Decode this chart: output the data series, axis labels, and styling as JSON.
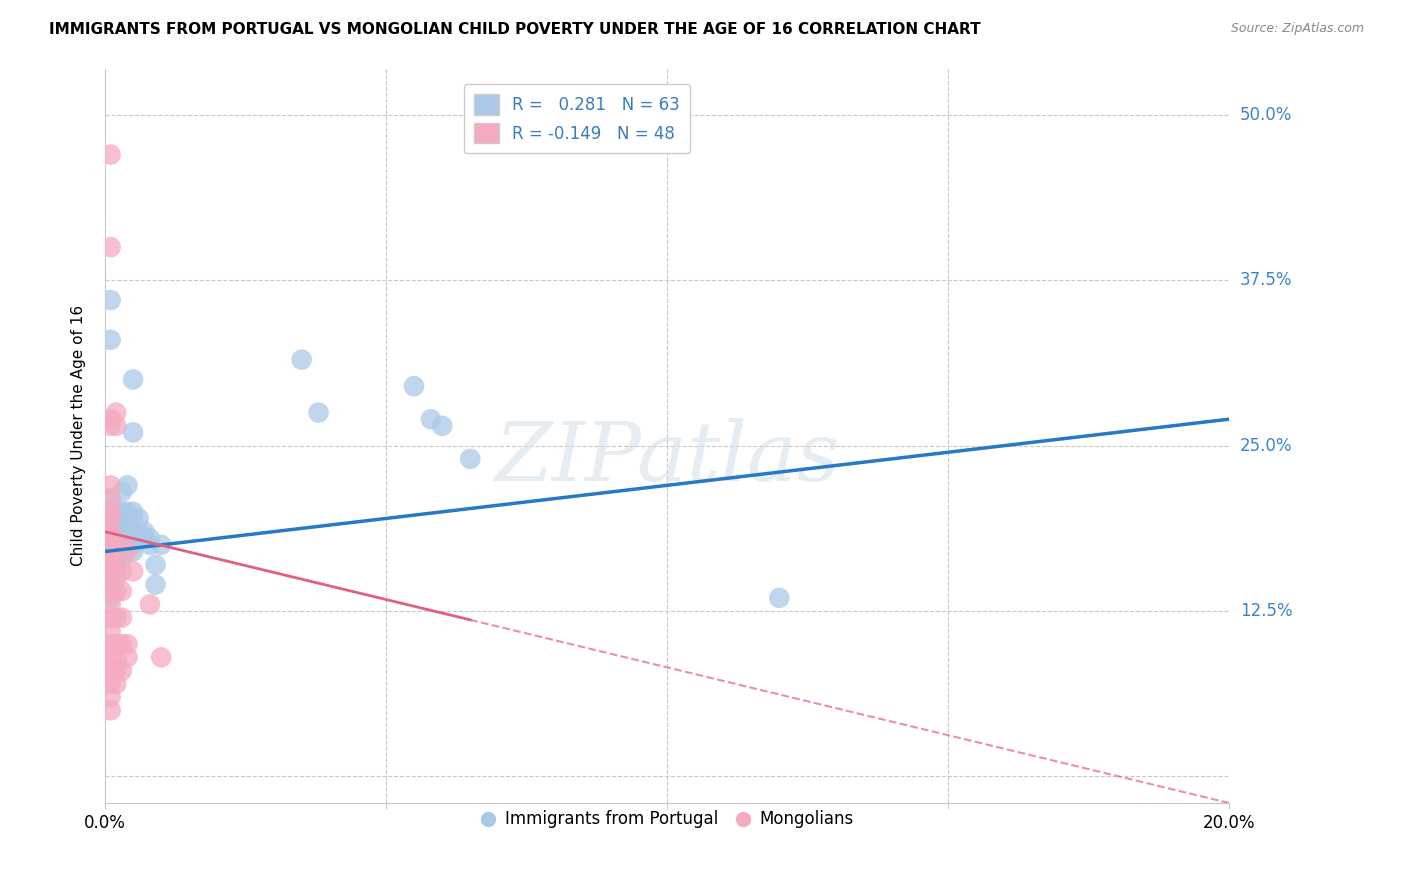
{
  "title": "IMMIGRANTS FROM PORTUGAL VS MONGOLIAN CHILD POVERTY UNDER THE AGE OF 16 CORRELATION CHART",
  "source": "Source: ZipAtlas.com",
  "ylabel": "Child Poverty Under the Age of 16",
  "y_ticks": [
    0.0,
    0.125,
    0.25,
    0.375,
    0.5
  ],
  "y_tick_labels": [
    "",
    "12.5%",
    "25.0%",
    "37.5%",
    "50.0%"
  ],
  "x_range": [
    0.0,
    0.2
  ],
  "y_range": [
    -0.02,
    0.535
  ],
  "blue_R": 0.281,
  "blue_N": 63,
  "pink_R": -0.149,
  "pink_N": 48,
  "legend_label_blue": "Immigrants from Portugal",
  "legend_label_pink": "Mongolians",
  "blue_color": "#aac9e8",
  "pink_color": "#f5aabf",
  "blue_line_color": "#2878c8",
  "pink_line_color": "#e06080",
  "blue_scatter": [
    [
      0.001,
      0.36
    ],
    [
      0.001,
      0.33
    ],
    [
      0.001,
      0.21
    ],
    [
      0.001,
      0.2
    ],
    [
      0.001,
      0.195
    ],
    [
      0.001,
      0.185
    ],
    [
      0.001,
      0.18
    ],
    [
      0.001,
      0.175
    ],
    [
      0.001,
      0.17
    ],
    [
      0.001,
      0.165
    ],
    [
      0.001,
      0.16
    ],
    [
      0.001,
      0.155
    ],
    [
      0.001,
      0.15
    ],
    [
      0.001,
      0.145
    ],
    [
      0.001,
      0.14
    ],
    [
      0.001,
      0.135
    ],
    [
      0.002,
      0.2
    ],
    [
      0.002,
      0.195
    ],
    [
      0.002,
      0.19
    ],
    [
      0.002,
      0.185
    ],
    [
      0.002,
      0.18
    ],
    [
      0.002,
      0.175
    ],
    [
      0.002,
      0.17
    ],
    [
      0.002,
      0.165
    ],
    [
      0.002,
      0.16
    ],
    [
      0.002,
      0.155
    ],
    [
      0.002,
      0.15
    ],
    [
      0.003,
      0.215
    ],
    [
      0.003,
      0.2
    ],
    [
      0.003,
      0.195
    ],
    [
      0.003,
      0.19
    ],
    [
      0.003,
      0.185
    ],
    [
      0.003,
      0.18
    ],
    [
      0.003,
      0.175
    ],
    [
      0.003,
      0.165
    ],
    [
      0.004,
      0.22
    ],
    [
      0.004,
      0.2
    ],
    [
      0.004,
      0.195
    ],
    [
      0.004,
      0.185
    ],
    [
      0.004,
      0.175
    ],
    [
      0.005,
      0.3
    ],
    [
      0.005,
      0.26
    ],
    [
      0.005,
      0.2
    ],
    [
      0.005,
      0.195
    ],
    [
      0.005,
      0.18
    ],
    [
      0.005,
      0.175
    ],
    [
      0.005,
      0.17
    ],
    [
      0.006,
      0.195
    ],
    [
      0.006,
      0.185
    ],
    [
      0.007,
      0.185
    ],
    [
      0.007,
      0.18
    ],
    [
      0.008,
      0.18
    ],
    [
      0.008,
      0.175
    ],
    [
      0.009,
      0.16
    ],
    [
      0.009,
      0.145
    ],
    [
      0.01,
      0.175
    ],
    [
      0.035,
      0.315
    ],
    [
      0.038,
      0.275
    ],
    [
      0.055,
      0.295
    ],
    [
      0.058,
      0.27
    ],
    [
      0.06,
      0.265
    ],
    [
      0.065,
      0.24
    ],
    [
      0.12,
      0.135
    ]
  ],
  "pink_scatter": [
    [
      0.001,
      0.47
    ],
    [
      0.001,
      0.4
    ],
    [
      0.001,
      0.27
    ],
    [
      0.001,
      0.265
    ],
    [
      0.001,
      0.22
    ],
    [
      0.001,
      0.21
    ],
    [
      0.001,
      0.2
    ],
    [
      0.001,
      0.195
    ],
    [
      0.001,
      0.185
    ],
    [
      0.001,
      0.18
    ],
    [
      0.001,
      0.175
    ],
    [
      0.001,
      0.17
    ],
    [
      0.001,
      0.165
    ],
    [
      0.001,
      0.16
    ],
    [
      0.001,
      0.155
    ],
    [
      0.001,
      0.15
    ],
    [
      0.001,
      0.14
    ],
    [
      0.001,
      0.13
    ],
    [
      0.001,
      0.12
    ],
    [
      0.001,
      0.11
    ],
    [
      0.001,
      0.1
    ],
    [
      0.001,
      0.09
    ],
    [
      0.001,
      0.08
    ],
    [
      0.001,
      0.07
    ],
    [
      0.001,
      0.06
    ],
    [
      0.001,
      0.05
    ],
    [
      0.002,
      0.275
    ],
    [
      0.002,
      0.265
    ],
    [
      0.002,
      0.17
    ],
    [
      0.002,
      0.155
    ],
    [
      0.002,
      0.14
    ],
    [
      0.002,
      0.12
    ],
    [
      0.002,
      0.1
    ],
    [
      0.002,
      0.09
    ],
    [
      0.002,
      0.08
    ],
    [
      0.002,
      0.07
    ],
    [
      0.003,
      0.175
    ],
    [
      0.003,
      0.155
    ],
    [
      0.003,
      0.14
    ],
    [
      0.003,
      0.12
    ],
    [
      0.003,
      0.1
    ],
    [
      0.003,
      0.08
    ],
    [
      0.004,
      0.17
    ],
    [
      0.004,
      0.1
    ],
    [
      0.004,
      0.09
    ],
    [
      0.005,
      0.155
    ],
    [
      0.008,
      0.13
    ],
    [
      0.01,
      0.09
    ]
  ]
}
